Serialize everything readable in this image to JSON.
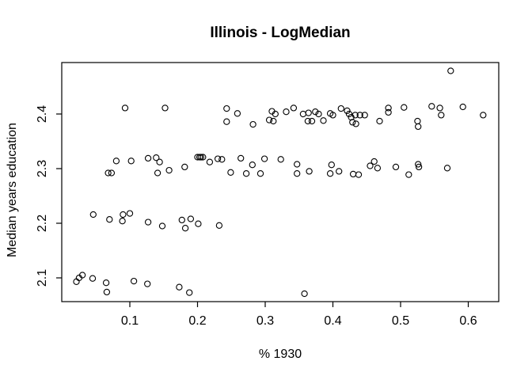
{
  "figure": {
    "title": "Illinois - LogMedian",
    "xlabel": "% 1930",
    "ylabel": "Median years education"
  },
  "chart_data": {
    "type": "scatter",
    "title": "Illinois - LogMedian",
    "xlabel": "% 1930",
    "ylabel": "Median years education",
    "marker": "open-circle",
    "marker_color": "#000000",
    "grid": false,
    "legend": null,
    "xlim": [
      -0.001,
      0.645
    ],
    "ylim": [
      2.056,
      2.494
    ],
    "x_ticks": [
      0.1,
      0.2,
      0.3,
      0.4,
      0.5,
      0.6
    ],
    "x_tick_labels": [
      "0.1",
      "0.2",
      "0.3",
      "0.4",
      "0.5",
      "0.6"
    ],
    "y_ticks": [
      2.1,
      2.2,
      2.3,
      2.4
    ],
    "y_tick_labels": [
      "2.1",
      "2.2",
      "2.3",
      "2.4"
    ],
    "points": [
      [
        0.093,
        2.411
      ],
      [
        0.152,
        2.411
      ],
      [
        0.243,
        2.41
      ],
      [
        0.259,
        2.401
      ],
      [
        0.243,
        2.386
      ],
      [
        0.282,
        2.381
      ],
      [
        0.31,
        2.405
      ],
      [
        0.315,
        2.4
      ],
      [
        0.306,
        2.389
      ],
      [
        0.312,
        2.387
      ],
      [
        0.331,
        2.404
      ],
      [
        0.342,
        2.411
      ],
      [
        0.356,
        2.4
      ],
      [
        0.364,
        2.402
      ],
      [
        0.374,
        2.404
      ],
      [
        0.379,
        2.4
      ],
      [
        0.363,
        2.387
      ],
      [
        0.369,
        2.387
      ],
      [
        0.386,
        2.388
      ],
      [
        0.396,
        2.401
      ],
      [
        0.4,
        2.398
      ],
      [
        0.412,
        2.41
      ],
      [
        0.421,
        2.406
      ],
      [
        0.424,
        2.4
      ],
      [
        0.427,
        2.394
      ],
      [
        0.433,
        2.398
      ],
      [
        0.44,
        2.398
      ],
      [
        0.447,
        2.398
      ],
      [
        0.429,
        2.385
      ],
      [
        0.434,
        2.382
      ],
      [
        0.469,
        2.387
      ],
      [
        0.482,
        2.411
      ],
      [
        0.482,
        2.403
      ],
      [
        0.505,
        2.412
      ],
      [
        0.525,
        2.387
      ],
      [
        0.526,
        2.377
      ],
      [
        0.546,
        2.414
      ],
      [
        0.558,
        2.411
      ],
      [
        0.56,
        2.398
      ],
      [
        0.592,
        2.413
      ],
      [
        0.622,
        2.398
      ],
      [
        0.574,
        2.479
      ],
      [
        0.08,
        2.314
      ],
      [
        0.102,
        2.314
      ],
      [
        0.127,
        2.319
      ],
      [
        0.139,
        2.32
      ],
      [
        0.144,
        2.312
      ],
      [
        0.068,
        2.292
      ],
      [
        0.073,
        2.292
      ],
      [
        0.141,
        2.292
      ],
      [
        0.158,
        2.297
      ],
      [
        0.181,
        2.303
      ],
      [
        0.2,
        2.321
      ],
      [
        0.203,
        2.321
      ],
      [
        0.205,
        2.321
      ],
      [
        0.208,
        2.321
      ],
      [
        0.218,
        2.312
      ],
      [
        0.23,
        2.318
      ],
      [
        0.236,
        2.317
      ],
      [
        0.249,
        2.293
      ],
      [
        0.264,
        2.319
      ],
      [
        0.272,
        2.291
      ],
      [
        0.281,
        2.307
      ],
      [
        0.293,
        2.291
      ],
      [
        0.299,
        2.318
      ],
      [
        0.323,
        2.317
      ],
      [
        0.347,
        2.308
      ],
      [
        0.347,
        2.291
      ],
      [
        0.365,
        2.295
      ],
      [
        0.396,
        2.291
      ],
      [
        0.398,
        2.307
      ],
      [
        0.409,
        2.295
      ],
      [
        0.43,
        2.29
      ],
      [
        0.438,
        2.289
      ],
      [
        0.455,
        2.305
      ],
      [
        0.461,
        2.313
      ],
      [
        0.466,
        2.301
      ],
      [
        0.493,
        2.303
      ],
      [
        0.512,
        2.289
      ],
      [
        0.526,
        2.308
      ],
      [
        0.527,
        2.303
      ],
      [
        0.569,
        2.301
      ],
      [
        0.046,
        2.216
      ],
      [
        0.07,
        2.207
      ],
      [
        0.089,
        2.204
      ],
      [
        0.09,
        2.216
      ],
      [
        0.1,
        2.218
      ],
      [
        0.127,
        2.202
      ],
      [
        0.148,
        2.195
      ],
      [
        0.177,
        2.206
      ],
      [
        0.182,
        2.191
      ],
      [
        0.19,
        2.208
      ],
      [
        0.201,
        2.199
      ],
      [
        0.232,
        2.196
      ],
      [
        0.021,
        2.093
      ],
      [
        0.025,
        2.1
      ],
      [
        0.03,
        2.105
      ],
      [
        0.045,
        2.099
      ],
      [
        0.065,
        2.091
      ],
      [
        0.066,
        2.074
      ],
      [
        0.106,
        2.094
      ],
      [
        0.126,
        2.089
      ],
      [
        0.173,
        2.083
      ],
      [
        0.188,
        2.073
      ],
      [
        0.358,
        2.071
      ]
    ]
  }
}
